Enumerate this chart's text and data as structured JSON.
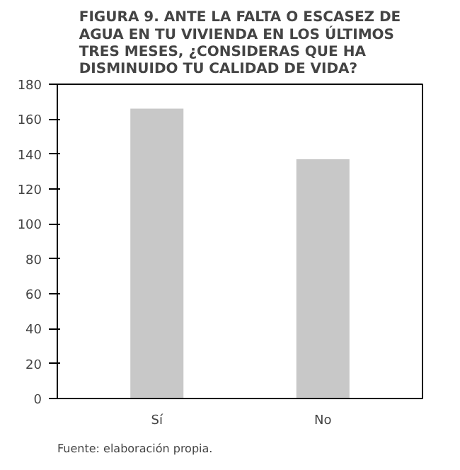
{
  "chart_data": {
    "type": "bar",
    "title": "FIGURA 9. ANTE LA FALTA O ESCASEZ DE AGUA EN TU VIVIENDA EN LOS ÚLTIMOS TRES MESES, ¿CONSIDERAS QUE HA DISMINUIDO TU CALIDAD DE VIDA?",
    "categories": [
      "Sí",
      "No"
    ],
    "values": [
      166,
      137
    ],
    "color": "#c8c8c8",
    "ylim": [
      0,
      180
    ],
    "yticks": [
      0,
      20,
      40,
      60,
      80,
      100,
      120,
      140,
      160,
      180
    ],
    "grid": false,
    "annotations": [
      "Fuente: elaboración propia."
    ]
  }
}
